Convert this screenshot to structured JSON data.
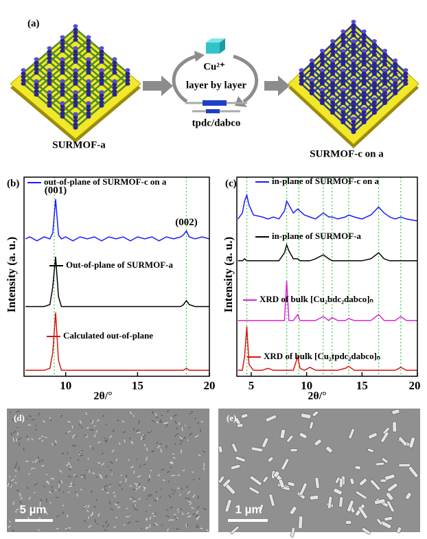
{
  "panel_a": {
    "label": "(a)",
    "ion": "Cu²⁺",
    "process": "layer by layer",
    "linkers": "tpdc/dabco",
    "left_caption": "SURMOF-a",
    "right_caption": "SURMOF-c on a"
  },
  "chart_data": [
    {
      "type": "line",
      "panel_label": "(b)",
      "x_label": "2θ/°",
      "y_label": "Intensity (a. u.)",
      "xlim": [
        7.1,
        20
      ],
      "xticks": [
        10,
        15,
        20
      ],
      "ylim": [
        0,
        100
      ],
      "ref_lines": [
        9.2,
        18.4
      ],
      "annotations": [
        {
          "text": "(001)",
          "x": 9.3,
          "y": 93
        },
        {
          "text": "(002)",
          "x": 18.4,
          "y": 77
        }
      ],
      "x": [
        7.2,
        7.5,
        8,
        8.5,
        8.9,
        9.1,
        9.3,
        9.5,
        9.7,
        10,
        10.5,
        11,
        11.5,
        12,
        12.5,
        13,
        13.5,
        14,
        14.5,
        15,
        15.5,
        16,
        16.5,
        17,
        17.5,
        18,
        18.2,
        18.4,
        18.6,
        19,
        19.5,
        20
      ],
      "series": [
        {
          "name": "out-of-plane of SURMOF-c on a",
          "color": "#1a1aff",
          "values": [
            69,
            70,
            68,
            70,
            69,
            72,
            89,
            71,
            69,
            70,
            68,
            70,
            69,
            70,
            68,
            70,
            69,
            70,
            68,
            70,
            69,
            70,
            68,
            70,
            69,
            70,
            71,
            73,
            70,
            69,
            70,
            69
          ]
        },
        {
          "name": "Out-of-plane of SURMOF-a",
          "color": "#000000",
          "values": [
            35,
            35,
            35,
            35,
            36,
            45,
            60,
            40,
            35,
            35,
            35,
            35,
            35,
            35,
            35,
            35,
            35,
            35,
            35,
            35,
            35,
            35,
            35,
            35,
            35,
            35,
            36,
            38,
            36,
            35,
            35,
            35
          ]
        },
        {
          "name": "Calculated out-of-plane",
          "color": "#d4140f",
          "values": [
            3,
            3,
            3,
            3,
            4,
            12,
            32,
            8,
            3,
            3,
            3,
            3,
            3,
            3,
            3,
            3,
            3,
            3,
            3,
            3,
            3,
            3,
            3,
            3,
            3,
            3,
            3,
            4,
            3,
            3,
            3,
            3
          ]
        }
      ]
    },
    {
      "type": "line",
      "panel_label": "(c)",
      "x_label": "2θ/°",
      "y_label": "Intensity (a. u.)",
      "xlim": [
        3.7,
        20
      ],
      "xticks": [
        5,
        10,
        15,
        20
      ],
      "ylim": [
        0,
        100
      ],
      "ref_lines": [
        4.6,
        8.2,
        9.3,
        11.5,
        12.3,
        13.8,
        16.5,
        18.5
      ],
      "annotations": [],
      "x": [
        3.8,
        4.2,
        4.4,
        4.6,
        4.8,
        5.2,
        6,
        6.5,
        7,
        7.5,
        8,
        8.2,
        8.4,
        8.8,
        9.2,
        9.4,
        9.8,
        10.3,
        10.8,
        11.5,
        12,
        12.3,
        12.8,
        13.5,
        13.8,
        14.3,
        15,
        15.8,
        16.5,
        17,
        17.5,
        18,
        18.5,
        19,
        20
      ],
      "series": [
        {
          "name": "in-plane of SURMOF-c on a",
          "color": "#1a1aff",
          "values": [
            79,
            82,
            88,
            91,
            86,
            81,
            80,
            79,
            80,
            79,
            83,
            88,
            86,
            82,
            84,
            83,
            81,
            80,
            79,
            82,
            80,
            80,
            79,
            80,
            81,
            80,
            79,
            81,
            85,
            82,
            80,
            79,
            80,
            79,
            78
          ]
        },
        {
          "name": "in-plane of SURMOF-a",
          "color": "#000000",
          "values": [
            58,
            58,
            59,
            58,
            58,
            58,
            58,
            58,
            58,
            58,
            62,
            66,
            63,
            59,
            59,
            58,
            58,
            58,
            59,
            61,
            59,
            58,
            58,
            58,
            58,
            58,
            58,
            59,
            62,
            59,
            58,
            58,
            58,
            58,
            58
          ]
        },
        {
          "name": "XRD of bulk [Cu₂bdc₂dabco]ₙ",
          "color": "#e020d0",
          "values": [
            28,
            28,
            28,
            28,
            28,
            28,
            28,
            28,
            28,
            28,
            28,
            48,
            28,
            28,
            31,
            28,
            28,
            28,
            28,
            30,
            28,
            29.5,
            28,
            28,
            29,
            28,
            28,
            28,
            31,
            28,
            28,
            28,
            30,
            28,
            28
          ]
        },
        {
          "name": "XRD of bulk [Cu₂tpdc₂dabco]ₙ",
          "color": "#d4140f",
          "values": [
            3,
            3,
            10,
            25,
            6,
            3,
            3,
            4,
            3,
            3,
            3,
            3,
            3,
            3,
            10,
            4,
            3,
            4.5,
            3,
            3,
            3,
            3,
            3,
            4,
            5,
            3,
            3,
            3,
            3,
            3,
            3,
            3,
            4.5,
            3,
            3
          ]
        }
      ]
    }
  ],
  "panel_d": {
    "label": "(d)",
    "scale_bar": "5 µm"
  },
  "panel_e": {
    "label": "(e)",
    "scale_bar": "1 µm"
  }
}
